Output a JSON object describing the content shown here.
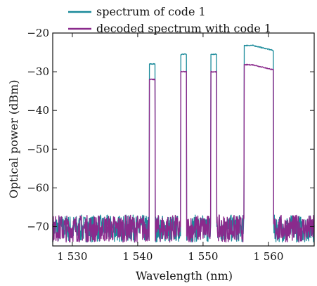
{
  "chart_data": {
    "type": "line",
    "xlabel": "Wavelength (nm)",
    "ylabel": "Optical power (dBm)",
    "xlim": [
      1527,
      1567
    ],
    "ylim": [
      -75,
      -20
    ],
    "xticks": [
      1530,
      1540,
      1550,
      1560
    ],
    "xtick_labels": [
      "1 530",
      "1 540",
      "1 550",
      "1 560"
    ],
    "yticks": [
      -70,
      -60,
      -50,
      -40,
      -30,
      -20
    ],
    "ytick_labels": [
      "−70",
      "−60",
      "−50",
      "−40",
      "−30",
      "−20"
    ],
    "grid": false,
    "legend_position": "top",
    "noise_floor_dbm": [
      -74,
      -67
    ],
    "series": [
      {
        "name": "spectrum of code 1",
        "color": "#1a8a9a",
        "channels": [
          {
            "center_nm": 1542.2,
            "width_nm": 0.9,
            "peak_dbm": -28
          },
          {
            "center_nm": 1547.0,
            "width_nm": 0.9,
            "peak_dbm": -25.5
          },
          {
            "center_nm": 1551.6,
            "width_nm": 0.9,
            "peak_dbm": -25.5
          },
          {
            "center_nm": 1558.5,
            "width_nm": 4.5,
            "peak_dbm": -23.2,
            "end_dbm": -24.5
          }
        ]
      },
      {
        "name": "decoded spectrum with code 1",
        "color": "#8a2a8c",
        "channels": [
          {
            "center_nm": 1542.2,
            "width_nm": 0.9,
            "peak_dbm": -32
          },
          {
            "center_nm": 1547.0,
            "width_nm": 0.9,
            "peak_dbm": -30
          },
          {
            "center_nm": 1551.6,
            "width_nm": 0.9,
            "peak_dbm": -30
          },
          {
            "center_nm": 1558.5,
            "width_nm": 4.5,
            "peak_dbm": -28.2,
            "end_dbm": -29.5
          }
        ]
      }
    ]
  }
}
